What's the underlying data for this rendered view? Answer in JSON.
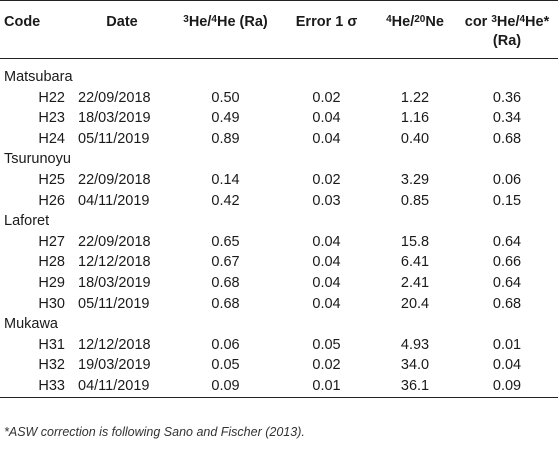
{
  "table": {
    "headers": {
      "code": "Code",
      "date": "Date",
      "ratio": {
        "sup1": "3",
        "mid": "He/",
        "sup2": "4",
        "tail": "He (Ra)"
      },
      "error": "Error 1 σ",
      "he_ne": {
        "sup1": "4",
        "mid": "He/",
        "sup2": "20",
        "tail": "Ne"
      },
      "cor": {
        "line1_pre": "cor ",
        "sup1": "3",
        "mid": "He/",
        "sup2": "4",
        "tail": "He*",
        "line2": "(Ra)"
      }
    },
    "groups": [
      {
        "name": "Matsubara",
        "rows": [
          {
            "code": "H22",
            "date": "22/09/2018",
            "ratio": "0.50",
            "error": "0.02",
            "he_ne": "1.22",
            "cor": "0.36"
          },
          {
            "code": "H23",
            "date": "18/03/2019",
            "ratio": "0.49",
            "error": "0.04",
            "he_ne": "1.16",
            "cor": "0.34"
          },
          {
            "code": "H24",
            "date": "05/11/2019",
            "ratio": "0.89",
            "error": "0.04",
            "he_ne": "0.40",
            "cor": "0.68"
          }
        ]
      },
      {
        "name": "Tsurunoyu",
        "rows": [
          {
            "code": "H25",
            "date": "22/09/2018",
            "ratio": "0.14",
            "error": "0.02",
            "he_ne": "3.29",
            "cor": "0.06"
          },
          {
            "code": "H26",
            "date": "04/11/2019",
            "ratio": "0.42",
            "error": "0.03",
            "he_ne": "0.85",
            "cor": "0.15"
          }
        ]
      },
      {
        "name": "Laforet",
        "rows": [
          {
            "code": "H27",
            "date": "22/09/2018",
            "ratio": "0.65",
            "error": "0.04",
            "he_ne": "15.8",
            "cor": "0.64"
          },
          {
            "code": "H28",
            "date": "12/12/2018",
            "ratio": "0.67",
            "error": "0.04",
            "he_ne": "6.41",
            "cor": "0.66"
          },
          {
            "code": "H29",
            "date": "18/03/2019",
            "ratio": "0.68",
            "error": "0.04",
            "he_ne": "2.41",
            "cor": "0.64"
          },
          {
            "code": "H30",
            "date": "05/11/2019",
            "ratio": "0.68",
            "error": "0.04",
            "he_ne": "20.4",
            "cor": "0.68"
          }
        ]
      },
      {
        "name": "Mukawa",
        "rows": [
          {
            "code": "H31",
            "date": "12/12/2018",
            "ratio": "0.06",
            "error": "0.05",
            "he_ne": "4.93",
            "cor": "0.01"
          },
          {
            "code": "H32",
            "date": "19/03/2019",
            "ratio": "0.05",
            "error": "0.02",
            "he_ne": "34.0",
            "cor": "0.04"
          },
          {
            "code": "H33",
            "date": "04/11/2019",
            "ratio": "0.09",
            "error": "0.01",
            "he_ne": "36.1",
            "cor": "0.09"
          }
        ]
      }
    ]
  },
  "footnote": "*ASW correction is following Sano and Fischer (2013)."
}
